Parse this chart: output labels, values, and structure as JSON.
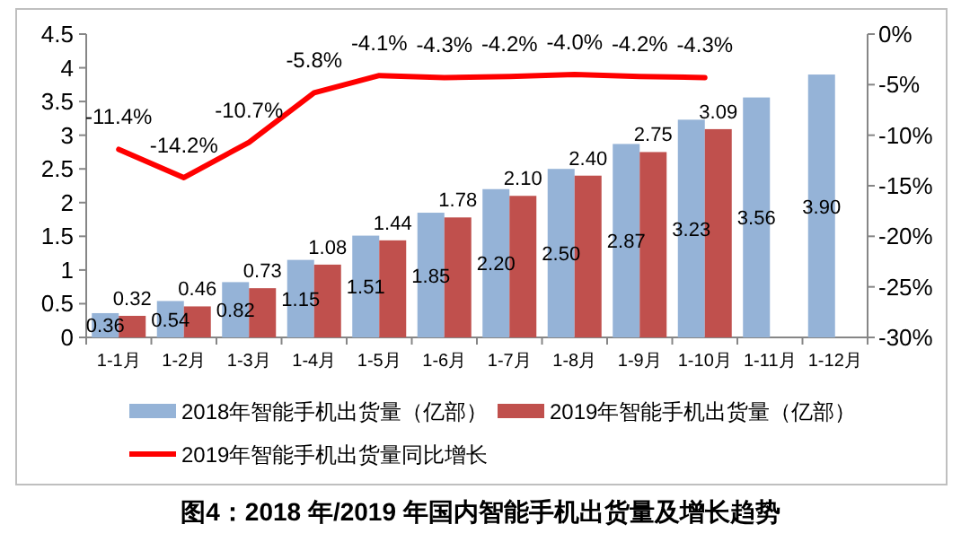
{
  "chart_data": {
    "type": "bar",
    "title": "图4：2018 年/2019 年国内智能手机出货量及增长趋势",
    "categories": [
      "1-1月",
      "1-2月",
      "1-3月",
      "1-4月",
      "1-5月",
      "1-6月",
      "1-7月",
      "1-8月",
      "1-9月",
      "1-10月",
      "1-11月",
      "1-12月"
    ],
    "series": [
      {
        "name": "2018年智能手机出货量（亿部）",
        "color": "#95b3d7",
        "values": [
          0.36,
          0.54,
          0.82,
          1.15,
          1.51,
          1.85,
          2.2,
          2.5,
          2.87,
          3.23,
          3.56,
          3.9
        ],
        "value_labels": [
          "0.36",
          "0.54",
          "0.82",
          "1.15",
          "1.51",
          "1.85",
          "2.20",
          "2.50",
          "2.87",
          "3.23",
          "3.56",
          "3.90"
        ]
      },
      {
        "name": "2019年智能手机出货量（亿部）",
        "color": "#c0504d",
        "values": [
          0.32,
          0.46,
          0.73,
          1.08,
          1.44,
          1.78,
          2.1,
          2.4,
          2.75,
          3.09,
          null,
          null
        ],
        "value_labels": [
          "0.32",
          "0.46",
          "0.73",
          "1.08",
          "1.44",
          "1.78",
          "2.10",
          "2.40",
          "2.75",
          "3.09",
          null,
          null
        ]
      },
      {
        "name": "2019年智能手机出货量同比增长",
        "type": "line",
        "axis": "y2",
        "color": "#ff0000",
        "values": [
          -11.4,
          -14.2,
          -10.7,
          -5.8,
          -4.1,
          -4.3,
          -4.2,
          -4.0,
          -4.2,
          -4.3,
          null,
          null
        ],
        "value_labels": [
          "-11.4%",
          "-14.2%",
          "-10.7%",
          "-5.8%",
          "-4.1%",
          "-4.3%",
          "-4.2%",
          "-4.0%",
          "-4.2%",
          "-4.3%",
          null,
          null
        ]
      }
    ],
    "ylim": [
      0,
      4.5
    ],
    "yticks": [
      0,
      0.5,
      1,
      1.5,
      2,
      2.5,
      3,
      3.5,
      4,
      4.5
    ],
    "y2lim": [
      -30,
      0
    ],
    "y2ticks": [
      {
        "value": 0,
        "label": "0%"
      },
      {
        "value": -5,
        "label": "-5%"
      },
      {
        "value": -10,
        "label": "-10%"
      },
      {
        "value": -15,
        "label": "-15%"
      },
      {
        "value": -20,
        "label": "-20%"
      },
      {
        "value": -25,
        "label": "-25%"
      },
      {
        "value": -30,
        "label": "-30%"
      }
    ],
    "grid": false,
    "legend": "bottom",
    "marker": "none"
  }
}
